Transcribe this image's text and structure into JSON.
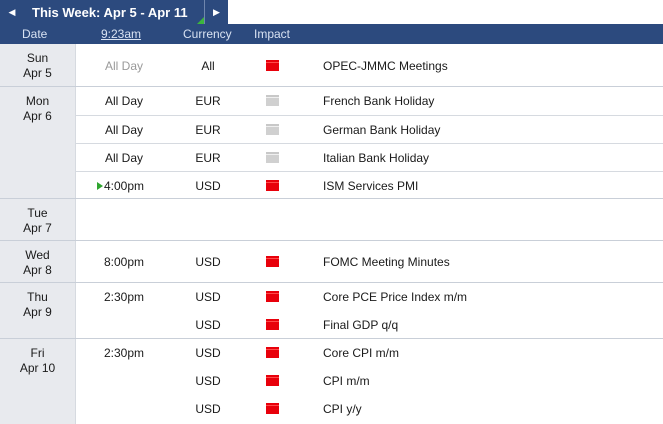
{
  "week": {
    "title": "This Week: Apr 5 - Apr 11",
    "prev_icon": "◀",
    "next_icon": "▶"
  },
  "columns": {
    "date": "Date",
    "time": "9:23am",
    "currency": "Currency",
    "impact": "Impact"
  },
  "colors": {
    "header": "#2c4a7e",
    "high_impact": "#e8000b",
    "holiday": "#c8c8c8",
    "next_event": "#2fa52f"
  },
  "days": [
    {
      "weekday": "Sun",
      "date": "Apr 5",
      "events": [
        {
          "time": "All Day",
          "currency": "All",
          "impact": "high",
          "title": "OPEC-JMMC Meetings"
        }
      ]
    },
    {
      "weekday": "Mon",
      "date": "Apr 6",
      "events": [
        {
          "time": "All Day",
          "currency": "EUR",
          "impact": "holiday",
          "title": "French Bank Holiday"
        },
        {
          "time": "All Day",
          "currency": "EUR",
          "impact": "holiday",
          "title": "German Bank Holiday"
        },
        {
          "time": "All Day",
          "currency": "EUR",
          "impact": "holiday",
          "title": "Italian Bank Holiday"
        },
        {
          "time": "4:00pm",
          "currency": "USD",
          "impact": "high",
          "title": "ISM Services PMI"
        }
      ]
    },
    {
      "weekday": "Tue",
      "date": "Apr 7",
      "events": []
    },
    {
      "weekday": "Wed",
      "date": "Apr 8",
      "events": [
        {
          "time": "8:00pm",
          "currency": "USD",
          "impact": "high",
          "title": "FOMC Meeting Minutes"
        }
      ]
    },
    {
      "weekday": "Thu",
      "date": "Apr 9",
      "events": [
        {
          "time": "2:30pm",
          "currency": "USD",
          "impact": "high",
          "title": "Core PCE Price Index m/m"
        },
        {
          "time": "",
          "currency": "USD",
          "impact": "high",
          "title": "Final GDP q/q"
        }
      ]
    },
    {
      "weekday": "Fri",
      "date": "Apr 10",
      "events": [
        {
          "time": "2:30pm",
          "currency": "USD",
          "impact": "high",
          "title": "Core CPI m/m"
        },
        {
          "time": "",
          "currency": "USD",
          "impact": "high",
          "title": "CPI m/m"
        },
        {
          "time": "",
          "currency": "USD",
          "impact": "high",
          "title": "CPI y/y"
        }
      ]
    }
  ]
}
